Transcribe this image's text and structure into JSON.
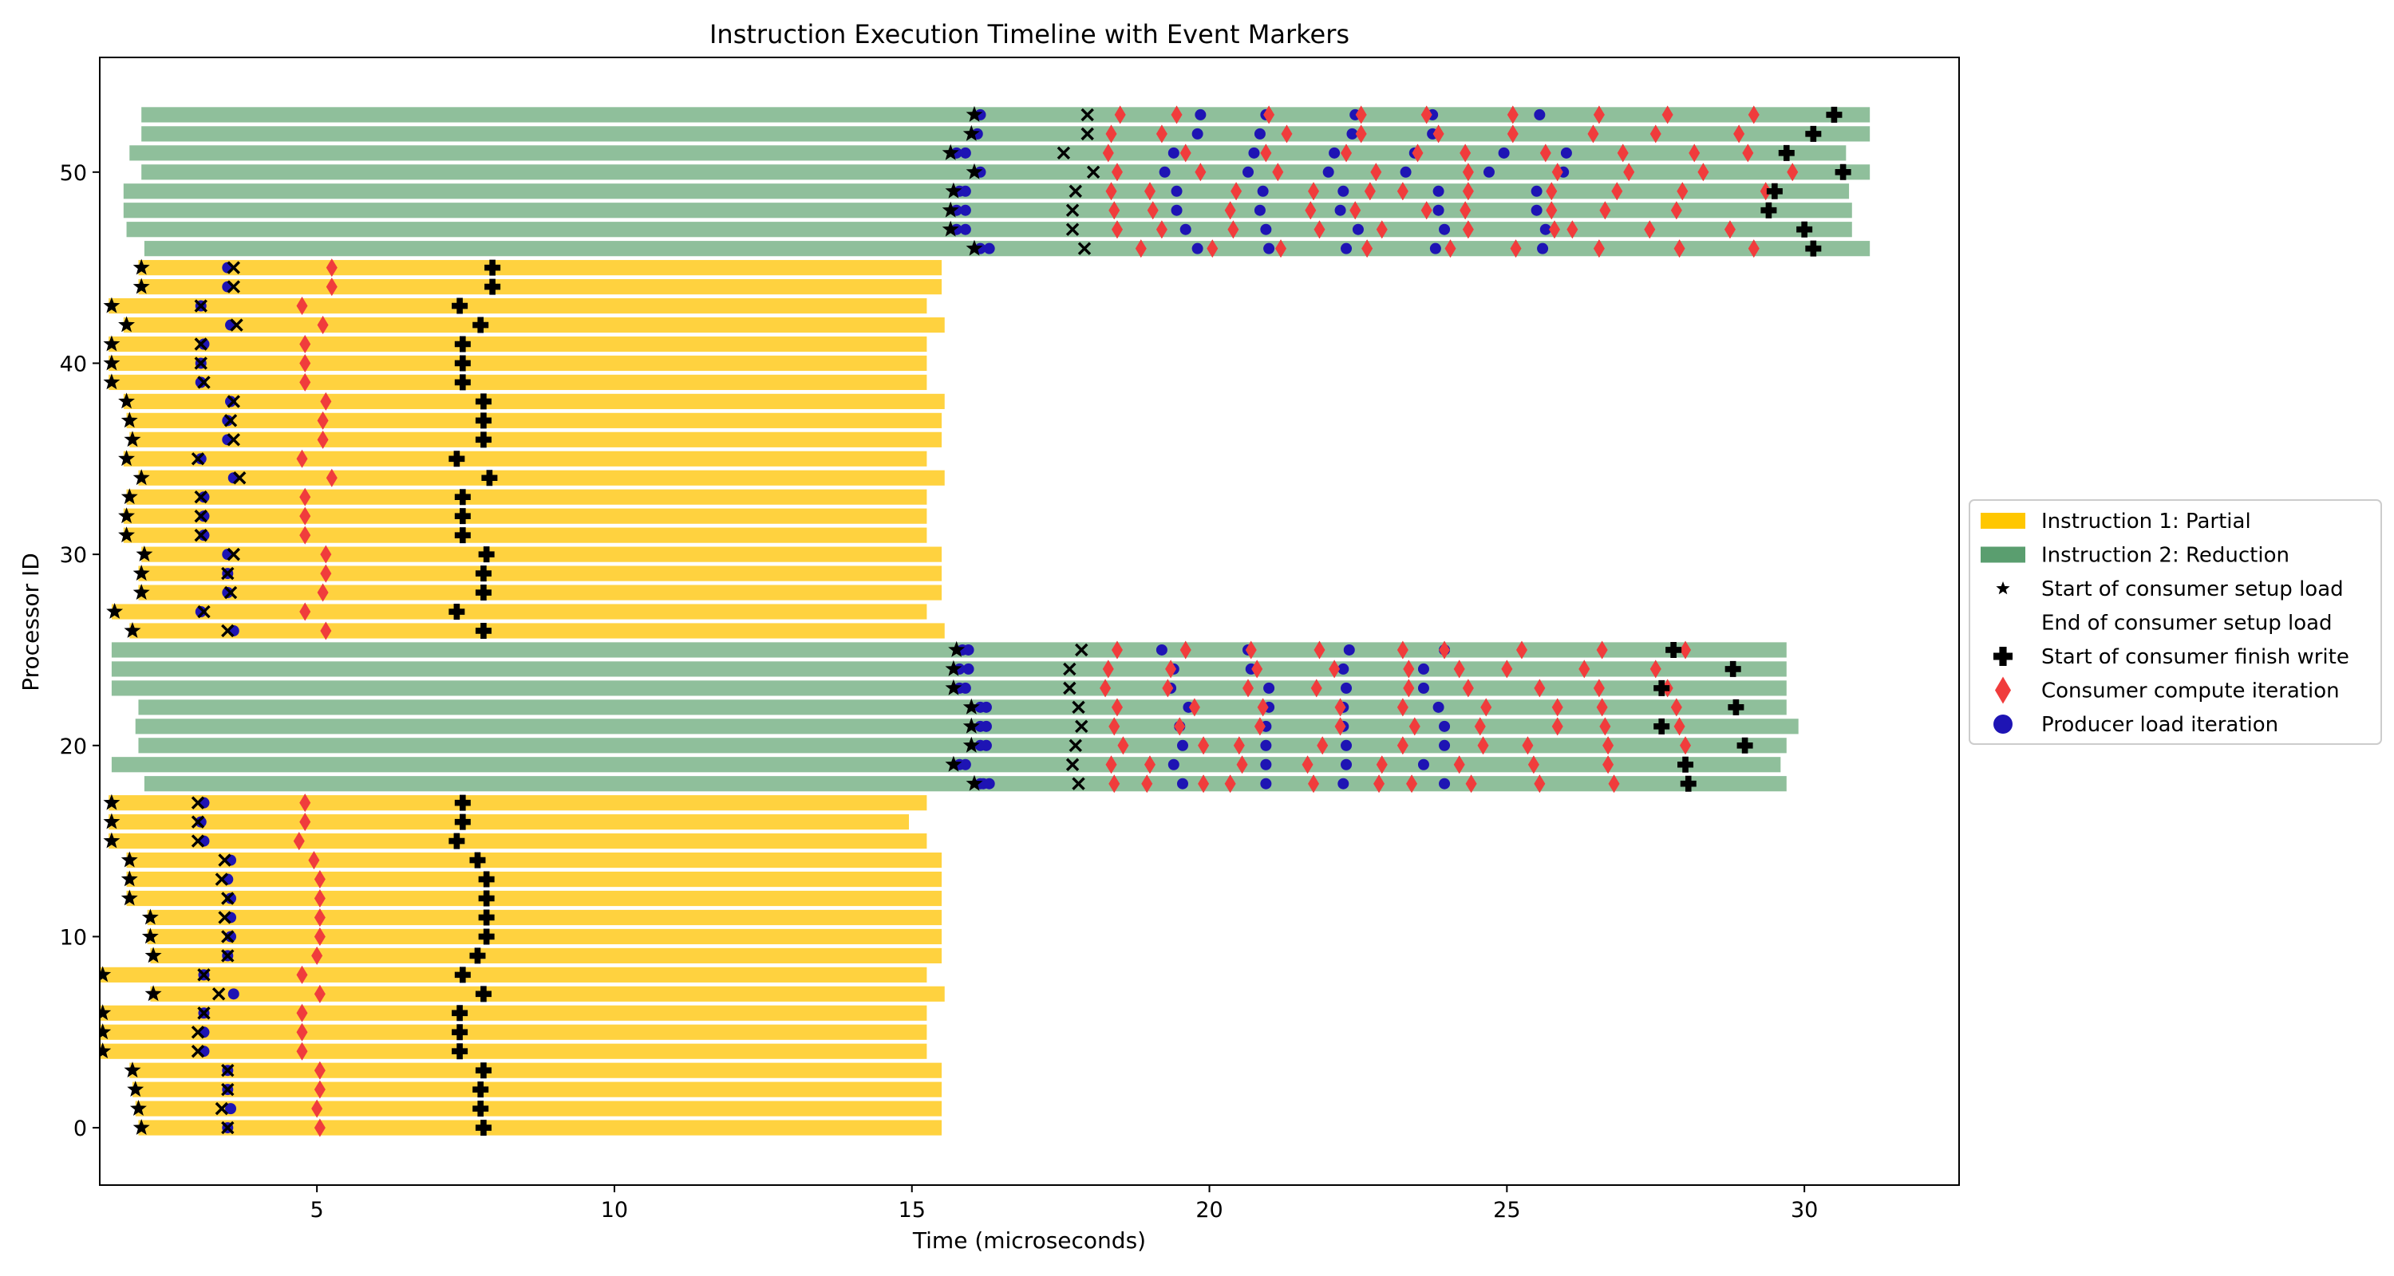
{
  "chart_data": {
    "type": "timeline",
    "title": "Instruction Execution Timeline with Event Markers",
    "xlabel": "Time (microseconds)",
    "ylabel": "Processor ID",
    "xlim": [
      1.35,
      32.6
    ],
    "ylim": [
      -3,
      56
    ],
    "xticks": [
      5,
      10,
      15,
      20,
      25,
      30
    ],
    "yticks": [
      0,
      10,
      20,
      30,
      40,
      50
    ],
    "grid": false,
    "legend_position": "outside-right",
    "colors": {
      "partial": "#FFD23F",
      "partial_legend": "#FFC700",
      "reduction": "#8FBF9B",
      "reduction_legend": "#5A9E6F",
      "marker_compute": "#F03C3C",
      "marker_producer": "#1E14B4",
      "marker_black": "#000000"
    },
    "legend": [
      {
        "key": "partial",
        "label": "Instruction 1: Partial",
        "symbol": "bar-partial"
      },
      {
        "key": "reduction",
        "label": "Instruction 2: Reduction",
        "symbol": "bar-reduction"
      },
      {
        "key": "star",
        "label": "Start of consumer setup load",
        "symbol": "star"
      },
      {
        "key": "x",
        "label": "End of consumer setup load",
        "symbol": "none"
      },
      {
        "key": "plus",
        "label": "Start of consumer finish write",
        "symbol": "plus"
      },
      {
        "key": "diamond",
        "label": "Consumer compute iteration",
        "symbol": "diamond"
      },
      {
        "key": "circle",
        "label": "Producer load iteration",
        "symbol": "circle"
      }
    ],
    "processor_tasks": [
      {
        "p": 0,
        "i": "partial",
        "s": 2.0,
        "e": 15.5,
        "star": 2.05,
        "x": 3.5,
        "c": [
          3.5
        ],
        "plus": 7.8,
        "d": [
          5.05
        ]
      },
      {
        "p": 1,
        "i": "partial",
        "s": 1.95,
        "e": 15.5,
        "star": 2.0,
        "x": 3.4,
        "c": [
          3.55
        ],
        "plus": 7.75,
        "d": [
          5.0
        ]
      },
      {
        "p": 2,
        "i": "partial",
        "s": 1.9,
        "e": 15.5,
        "star": 1.95,
        "x": 3.5,
        "c": [
          3.5
        ],
        "plus": 7.75,
        "d": [
          5.05
        ]
      },
      {
        "p": 3,
        "i": "partial",
        "s": 1.85,
        "e": 15.5,
        "star": 1.9,
        "x": 3.5,
        "c": [
          3.5
        ],
        "plus": 7.8,
        "d": [
          5.05
        ]
      },
      {
        "p": 4,
        "i": "partial",
        "s": 1.35,
        "e": 15.25,
        "star": 1.4,
        "x": 3.0,
        "c": [
          3.1
        ],
        "plus": 7.4,
        "d": [
          4.75
        ]
      },
      {
        "p": 5,
        "i": "partial",
        "s": 1.35,
        "e": 15.25,
        "star": 1.4,
        "x": 3.0,
        "c": [
          3.1
        ],
        "plus": 7.4,
        "d": [
          4.75
        ]
      },
      {
        "p": 6,
        "i": "partial",
        "s": 1.35,
        "e": 15.25,
        "star": 1.4,
        "x": 3.1,
        "c": [
          3.1
        ],
        "plus": 7.4,
        "d": [
          4.75
        ]
      },
      {
        "p": 7,
        "i": "partial",
        "s": 2.2,
        "e": 15.55,
        "star": 2.25,
        "x": 3.35,
        "c": [
          3.6
        ],
        "plus": 7.8,
        "d": [
          5.05
        ]
      },
      {
        "p": 8,
        "i": "partial",
        "s": 1.35,
        "e": 15.25,
        "star": 1.4,
        "x": 3.1,
        "c": [
          3.1
        ],
        "plus": 7.45,
        "d": [
          4.75
        ]
      },
      {
        "p": 9,
        "i": "partial",
        "s": 2.2,
        "e": 15.5,
        "star": 2.25,
        "x": 3.5,
        "c": [
          3.5
        ],
        "plus": 7.7,
        "d": [
          5.0
        ]
      },
      {
        "p": 10,
        "i": "partial",
        "s": 2.15,
        "e": 15.5,
        "star": 2.2,
        "x": 3.5,
        "c": [
          3.55
        ],
        "plus": 7.85,
        "d": [
          5.05
        ]
      },
      {
        "p": 11,
        "i": "partial",
        "s": 2.15,
        "e": 15.5,
        "star": 2.2,
        "x": 3.45,
        "c": [
          3.55
        ],
        "plus": 7.85,
        "d": [
          5.05
        ]
      },
      {
        "p": 12,
        "i": "partial",
        "s": 1.8,
        "e": 15.5,
        "star": 1.85,
        "x": 3.5,
        "c": [
          3.55
        ],
        "plus": 7.85,
        "d": [
          5.05
        ]
      },
      {
        "p": 13,
        "i": "partial",
        "s": 1.8,
        "e": 15.5,
        "star": 1.85,
        "x": 3.4,
        "c": [
          3.5
        ],
        "plus": 7.85,
        "d": [
          5.05
        ]
      },
      {
        "p": 14,
        "i": "partial",
        "s": 1.8,
        "e": 15.5,
        "star": 1.85,
        "x": 3.45,
        "c": [
          3.55
        ],
        "plus": 7.7,
        "d": [
          4.95
        ]
      },
      {
        "p": 15,
        "i": "partial",
        "s": 1.5,
        "e": 15.25,
        "star": 1.55,
        "x": 3.0,
        "c": [
          3.1
        ],
        "plus": 7.35,
        "d": [
          4.7
        ]
      },
      {
        "p": 16,
        "i": "partial",
        "s": 1.5,
        "e": 14.95,
        "star": 1.55,
        "x": 3.0,
        "c": [
          3.05
        ],
        "plus": 7.45,
        "d": [
          4.8
        ]
      },
      {
        "p": 17,
        "i": "partial",
        "s": 1.5,
        "e": 15.25,
        "star": 1.55,
        "x": 3.0,
        "c": [
          3.1
        ],
        "plus": 7.45,
        "d": [
          4.8
        ]
      },
      {
        "p": 18,
        "i": "reduction",
        "s": 2.1,
        "e": 29.7,
        "star": 16.05,
        "x": 17.8,
        "c": [
          16.15,
          16.2,
          16.3,
          19.55,
          20.95,
          22.25,
          23.95
        ],
        "plus": 28.05,
        "d": [
          18.4,
          18.95,
          19.9,
          20.35,
          21.75,
          22.85,
          24.4,
          23.4,
          25.55,
          26.8
        ]
      },
      {
        "p": 19,
        "i": "reduction",
        "s": 1.55,
        "e": 29.6,
        "star": 15.7,
        "x": 17.7,
        "c": [
          15.8,
          15.9,
          19.4,
          20.95,
          22.3,
          23.6
        ],
        "plus": 28.0,
        "d": [
          18.35,
          19.0,
          20.55,
          21.65,
          22.9,
          24.2,
          25.45,
          26.7
        ]
      },
      {
        "p": 20,
        "i": "reduction",
        "s": 2.0,
        "e": 29.7,
        "star": 16.0,
        "x": 17.75,
        "c": [
          16.15,
          16.25,
          19.55,
          20.95,
          22.3,
          23.95
        ],
        "plus": 29.0,
        "d": [
          18.55,
          19.9,
          20.5,
          21.9,
          23.25,
          24.6,
          25.35,
          26.7,
          28.0
        ]
      },
      {
        "p": 21,
        "i": "reduction",
        "s": 1.95,
        "e": 29.9,
        "star": 16.0,
        "x": 17.85,
        "c": [
          16.15,
          16.25,
          19.5,
          20.95,
          22.25,
          23.95
        ],
        "plus": 27.6,
        "d": [
          18.4,
          19.5,
          20.85,
          22.2,
          23.45,
          24.55,
          25.85,
          26.65,
          27.9
        ]
      },
      {
        "p": 22,
        "i": "reduction",
        "s": 2.0,
        "e": 29.7,
        "star": 16.0,
        "x": 17.8,
        "c": [
          16.15,
          16.25,
          19.65,
          21.0,
          22.25,
          23.85
        ],
        "plus": 28.85,
        "d": [
          18.45,
          19.75,
          20.9,
          22.2,
          23.25,
          24.65,
          25.85,
          26.6,
          27.85
        ]
      },
      {
        "p": 23,
        "i": "reduction",
        "s": 1.55,
        "e": 29.7,
        "star": 15.7,
        "x": 17.65,
        "c": [
          15.8,
          15.9,
          19.35,
          21.0,
          22.3,
          23.6
        ],
        "plus": 27.6,
        "d": [
          18.25,
          19.3,
          20.65,
          21.8,
          23.35,
          24.35,
          25.55,
          26.55,
          27.7
        ]
      },
      {
        "p": 24,
        "i": "reduction",
        "s": 1.55,
        "e": 29.7,
        "star": 15.7,
        "x": 17.65,
        "c": [
          15.8,
          15.95,
          19.4,
          20.7,
          22.25,
          23.6
        ],
        "plus": 28.8,
        "d": [
          18.3,
          19.35,
          20.8,
          22.1,
          23.35,
          24.2,
          25.0,
          26.3,
          27.5
        ]
      },
      {
        "p": 25,
        "i": "reduction",
        "s": 1.55,
        "e": 29.7,
        "star": 15.75,
        "x": 17.85,
        "c": [
          15.85,
          15.95,
          19.2,
          20.65,
          22.35,
          23.95
        ],
        "plus": 27.8,
        "d": [
          18.45,
          19.6,
          20.7,
          21.85,
          23.25,
          23.95,
          25.25,
          26.6,
          28.0
        ]
      },
      {
        "p": 26,
        "i": "partial",
        "s": 1.85,
        "e": 15.55,
        "star": 1.9,
        "x": 3.5,
        "c": [
          3.6
        ],
        "plus": 7.8,
        "d": [
          5.15
        ]
      },
      {
        "p": 27,
        "i": "partial",
        "s": 1.55,
        "e": 15.25,
        "star": 1.6,
        "x": 3.1,
        "c": [
          3.05
        ],
        "plus": 7.35,
        "d": [
          4.8
        ]
      },
      {
        "p": 28,
        "i": "partial",
        "s": 2.0,
        "e": 15.5,
        "star": 2.05,
        "x": 3.55,
        "c": [
          3.5
        ],
        "plus": 7.8,
        "d": [
          5.1
        ]
      },
      {
        "p": 29,
        "i": "partial",
        "s": 2.0,
        "e": 15.5,
        "star": 2.05,
        "x": 3.5,
        "c": [
          3.5
        ],
        "plus": 7.8,
        "d": [
          5.15
        ]
      },
      {
        "p": 30,
        "i": "partial",
        "s": 2.05,
        "e": 15.5,
        "star": 2.1,
        "x": 3.6,
        "c": [
          3.5
        ],
        "plus": 7.85,
        "d": [
          5.15
        ]
      },
      {
        "p": 31,
        "i": "partial",
        "s": 1.75,
        "e": 15.25,
        "star": 1.8,
        "x": 3.05,
        "c": [
          3.1
        ],
        "plus": 7.45,
        "d": [
          4.8
        ]
      },
      {
        "p": 32,
        "i": "partial",
        "s": 1.75,
        "e": 15.25,
        "star": 1.8,
        "x": 3.05,
        "c": [
          3.1
        ],
        "plus": 7.45,
        "d": [
          4.8
        ]
      },
      {
        "p": 33,
        "i": "partial",
        "s": 1.8,
        "e": 15.25,
        "star": 1.85,
        "x": 3.05,
        "c": [
          3.1
        ],
        "plus": 7.45,
        "d": [
          4.8
        ]
      },
      {
        "p": 34,
        "i": "partial",
        "s": 2.0,
        "e": 15.55,
        "star": 2.05,
        "x": 3.7,
        "c": [
          3.6
        ],
        "plus": 7.9,
        "d": [
          5.25
        ]
      },
      {
        "p": 35,
        "i": "partial",
        "s": 1.75,
        "e": 15.25,
        "star": 1.8,
        "x": 3.0,
        "c": [
          3.05
        ],
        "plus": 7.35,
        "d": [
          4.75
        ]
      },
      {
        "p": 36,
        "i": "partial",
        "s": 1.85,
        "e": 15.5,
        "star": 1.9,
        "x": 3.6,
        "c": [
          3.5
        ],
        "plus": 7.8,
        "d": [
          5.1
        ]
      },
      {
        "p": 37,
        "i": "partial",
        "s": 1.8,
        "e": 15.5,
        "star": 1.85,
        "x": 3.55,
        "c": [
          3.5
        ],
        "plus": 7.8,
        "d": [
          5.1
        ]
      },
      {
        "p": 38,
        "i": "partial",
        "s": 1.75,
        "e": 15.55,
        "star": 1.8,
        "x": 3.6,
        "c": [
          3.55
        ],
        "plus": 7.8,
        "d": [
          5.15
        ]
      },
      {
        "p": 39,
        "i": "partial",
        "s": 1.5,
        "e": 15.25,
        "star": 1.55,
        "x": 3.1,
        "c": [
          3.05
        ],
        "plus": 7.45,
        "d": [
          4.8
        ]
      },
      {
        "p": 40,
        "i": "partial",
        "s": 1.5,
        "e": 15.25,
        "star": 1.55,
        "x": 3.05,
        "c": [
          3.05
        ],
        "plus": 7.45,
        "d": [
          4.8
        ]
      },
      {
        "p": 41,
        "i": "partial",
        "s": 1.5,
        "e": 15.25,
        "star": 1.55,
        "x": 3.05,
        "c": [
          3.1
        ],
        "plus": 7.45,
        "d": [
          4.8
        ]
      },
      {
        "p": 42,
        "i": "partial",
        "s": 1.75,
        "e": 15.55,
        "star": 1.8,
        "x": 3.65,
        "c": [
          3.55
        ],
        "plus": 7.75,
        "d": [
          5.1
        ]
      },
      {
        "p": 43,
        "i": "partial",
        "s": 1.5,
        "e": 15.25,
        "star": 1.55,
        "x": 3.05,
        "c": [
          3.05
        ],
        "plus": 7.4,
        "d": [
          4.75
        ]
      },
      {
        "p": 44,
        "i": "partial",
        "s": 2.0,
        "e": 15.5,
        "star": 2.05,
        "x": 3.6,
        "c": [
          3.5
        ],
        "plus": 7.95,
        "d": [
          5.25
        ]
      },
      {
        "p": 45,
        "i": "partial",
        "s": 2.0,
        "e": 15.5,
        "star": 2.05,
        "x": 3.6,
        "c": [
          3.5
        ],
        "plus": 7.95,
        "d": [
          5.25
        ]
      },
      {
        "p": 46,
        "i": "reduction",
        "s": 2.1,
        "e": 31.1,
        "star": 16.05,
        "x": 17.9,
        "c": [
          16.15,
          16.3,
          19.8,
          21.0,
          22.3,
          23.8,
          25.6
        ],
        "plus": 30.15,
        "d": [
          18.85,
          20.05,
          21.2,
          22.65,
          24.05,
          25.15,
          26.55,
          27.9,
          29.15
        ]
      },
      {
        "p": 47,
        "i": "reduction",
        "s": 1.8,
        "e": 30.8,
        "star": 15.65,
        "x": 17.7,
        "c": [
          15.75,
          15.9,
          19.6,
          20.95,
          22.5,
          23.95,
          25.65
        ],
        "plus": 30.0,
        "d": [
          18.45,
          19.2,
          20.4,
          21.85,
          22.9,
          24.35,
          25.8,
          26.1,
          27.4,
          28.75
        ]
      },
      {
        "p": 48,
        "i": "reduction",
        "s": 1.75,
        "e": 30.8,
        "star": 15.65,
        "x": 17.7,
        "c": [
          15.75,
          15.9,
          19.45,
          20.85,
          22.2,
          23.85,
          25.5
        ],
        "plus": 29.4,
        "d": [
          18.4,
          19.05,
          20.35,
          21.7,
          22.45,
          23.65,
          24.3,
          25.75,
          26.65,
          27.85
        ]
      },
      {
        "p": 49,
        "i": "reduction",
        "s": 1.75,
        "e": 30.75,
        "star": 15.7,
        "x": 17.75,
        "c": [
          15.8,
          15.9,
          19.45,
          20.9,
          22.25,
          23.85,
          25.5
        ],
        "plus": 29.5,
        "d": [
          18.35,
          19.0,
          20.45,
          21.75,
          22.7,
          23.25,
          24.35,
          25.75,
          26.85,
          27.95,
          29.35
        ]
      },
      {
        "p": 50,
        "i": "reduction",
        "s": 2.05,
        "e": 31.1,
        "star": 16.05,
        "x": 18.05,
        "c": [
          16.15,
          19.25,
          20.65,
          22.0,
          23.3,
          24.7,
          25.95
        ],
        "plus": 30.65,
        "d": [
          18.45,
          19.85,
          21.15,
          22.8,
          24.35,
          25.85,
          27.05,
          28.3,
          29.8
        ]
      },
      {
        "p": 51,
        "i": "reduction",
        "s": 1.85,
        "e": 30.7,
        "star": 15.65,
        "x": 17.55,
        "c": [
          15.75,
          15.9,
          19.4,
          20.75,
          22.1,
          23.45,
          24.95,
          26.0
        ],
        "plus": 29.7,
        "d": [
          18.3,
          19.6,
          20.95,
          22.3,
          23.5,
          24.3,
          25.65,
          26.95,
          28.15,
          29.05
        ]
      },
      {
        "p": 52,
        "i": "reduction",
        "s": 2.05,
        "e": 31.1,
        "star": 16.0,
        "x": 17.95,
        "c": [
          16.1,
          19.8,
          20.85,
          22.4,
          23.75
        ],
        "plus": 30.15,
        "d": [
          18.35,
          19.2,
          21.3,
          22.55,
          23.85,
          25.1,
          26.45,
          27.5,
          28.9
        ]
      },
      {
        "p": 53,
        "i": "reduction",
        "s": 2.05,
        "e": 31.1,
        "star": 16.05,
        "x": 17.95,
        "c": [
          16.15,
          19.85,
          20.95,
          22.45,
          23.75,
          25.55
        ],
        "plus": 30.5,
        "d": [
          18.5,
          19.45,
          21.0,
          22.55,
          23.65,
          25.1,
          26.55,
          27.7,
          29.15
        ]
      }
    ]
  }
}
